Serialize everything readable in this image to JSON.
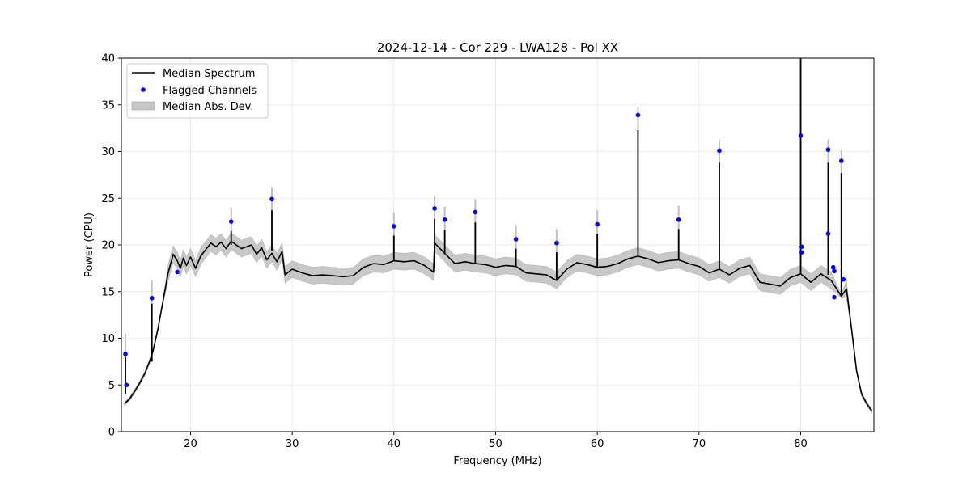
{
  "chart_data": {
    "type": "line",
    "title": "2024-12-14 - Cor 229 - LWA128 - Pol XX",
    "xlabel": "Frequency (MHz)",
    "ylabel": "Power (CPU)",
    "xlim": [
      13.2,
      87.2
    ],
    "ylim": [
      0,
      40
    ],
    "x_ticks": [
      20,
      30,
      40,
      50,
      60,
      70,
      80
    ],
    "y_ticks": [
      0,
      5,
      10,
      15,
      20,
      25,
      30,
      35,
      40
    ],
    "grid": true,
    "legend_position": "top-left",
    "legend": [
      "Median Spectrum",
      "Flagged Channels",
      "Median Abs. Dev."
    ],
    "colors": {
      "median": "#000000",
      "flagged": "#0000ff",
      "mad_band": "#c8c8c8"
    },
    "series": [
      {
        "name": "Median Spectrum",
        "x": [
          13.5,
          14.0,
          14.5,
          15.0,
          15.5,
          16.0,
          16.3,
          16.8,
          17.3,
          17.8,
          18.3,
          18.7,
          19.0,
          19.3,
          19.6,
          20.0,
          20.5,
          21.0,
          21.5,
          22.0,
          22.5,
          23.0,
          23.5,
          24.0,
          25.0,
          26.0,
          26.5,
          27.0,
          27.5,
          28.0,
          28.5,
          29.0,
          29.3,
          30.0,
          31.0,
          32.0,
          33.0,
          34.0,
          35.0,
          36.0,
          37.0,
          38.0,
          39.0,
          40.0,
          41.0,
          42.0,
          43.0,
          43.9,
          44.0,
          45.0,
          46.0,
          47.0,
          48.0,
          49.0,
          50.0,
          51.0,
          52.0,
          53.0,
          54.0,
          55.0,
          56.0,
          57.0,
          58.0,
          59.0,
          60.0,
          61.0,
          62.0,
          63.0,
          64.0,
          65.0,
          66.0,
          67.0,
          68.0,
          69.0,
          70.0,
          71.0,
          72.0,
          73.0,
          74.0,
          75.0,
          76.0,
          77.0,
          78.0,
          79.0,
          80.0,
          81.0,
          82.0,
          83.0,
          84.0,
          84.5,
          85.0,
          85.5,
          86.0,
          86.5,
          87.0
        ],
        "values": [
          3.0,
          3.5,
          4.3,
          5.2,
          6.2,
          7.6,
          8.6,
          11.0,
          14.0,
          17.0,
          19.0,
          18.3,
          17.5,
          18.6,
          17.8,
          18.7,
          17.5,
          18.8,
          19.5,
          20.2,
          19.8,
          20.3,
          19.6,
          20.4,
          19.6,
          20.0,
          19.0,
          19.7,
          18.4,
          19.1,
          18.2,
          19.3,
          16.8,
          17.4,
          17.0,
          16.7,
          16.8,
          16.7,
          16.6,
          16.7,
          17.6,
          18.0,
          17.9,
          18.3,
          18.2,
          18.3,
          17.8,
          17.1,
          20.2,
          19.1,
          18.0,
          18.2,
          18.0,
          17.9,
          17.6,
          17.8,
          17.7,
          17.0,
          16.9,
          16.8,
          16.2,
          17.4,
          18.1,
          17.9,
          17.6,
          17.7,
          18.0,
          18.5,
          18.8,
          18.5,
          18.1,
          18.3,
          18.4,
          18.0,
          17.7,
          17.0,
          17.4,
          16.8,
          17.5,
          17.8,
          16.0,
          15.8,
          15.6,
          16.5,
          16.9,
          16.0,
          16.9,
          16.2,
          14.5,
          15.3,
          11.0,
          6.5,
          4.0,
          3.0,
          2.2
        ]
      },
      {
        "name": "Flagged Channels",
        "x": [
          13.6,
          13.7,
          16.2,
          18.7,
          24.0,
          28.0,
          40.0,
          44.0,
          45.0,
          48.0,
          52.0,
          56.0,
          60.0,
          64.0,
          68.0,
          72.0,
          80.0,
          80.1,
          80.1,
          82.7,
          82.7,
          83.2,
          83.3,
          83.3,
          84.0,
          84.2
        ],
        "values": [
          8.3,
          5.0,
          14.3,
          17.1,
          22.5,
          24.9,
          22.0,
          23.9,
          22.7,
          23.5,
          20.6,
          20.2,
          22.2,
          33.9,
          22.7,
          30.1,
          31.7,
          19.8,
          19.2,
          30.2,
          21.2,
          17.6,
          17.2,
          14.4,
          29.0,
          16.3
        ]
      }
    ],
    "spikes": [
      {
        "x": 13.6,
        "base": 4.0,
        "top": 8.0
      },
      {
        "x": 16.2,
        "base": 7.5,
        "top": 13.7
      },
      {
        "x": 24.0,
        "base": 20.0,
        "top": 21.5
      },
      {
        "x": 28.0,
        "base": 19.4,
        "top": 23.7
      },
      {
        "x": 40.0,
        "base": 18.3,
        "top": 21.0
      },
      {
        "x": 44.0,
        "base": 17.5,
        "top": 22.8
      },
      {
        "x": 45.0,
        "base": 19.0,
        "top": 21.6
      },
      {
        "x": 48.0,
        "base": 18.0,
        "top": 22.4
      },
      {
        "x": 52.0,
        "base": 17.7,
        "top": 19.6
      },
      {
        "x": 56.0,
        "base": 16.3,
        "top": 19.2
      },
      {
        "x": 60.0,
        "base": 17.6,
        "top": 21.2
      },
      {
        "x": 64.0,
        "base": 18.8,
        "top": 32.3
      },
      {
        "x": 68.0,
        "base": 18.4,
        "top": 21.7
      },
      {
        "x": 72.0,
        "base": 17.4,
        "top": 28.8
      },
      {
        "x": 80.0,
        "base": 16.9,
        "top": 40.0
      },
      {
        "x": 82.7,
        "base": 16.8,
        "top": 28.8
      },
      {
        "x": 84.0,
        "base": 14.5,
        "top": 27.7
      }
    ],
    "mad_halfwidth": 0.9
  }
}
